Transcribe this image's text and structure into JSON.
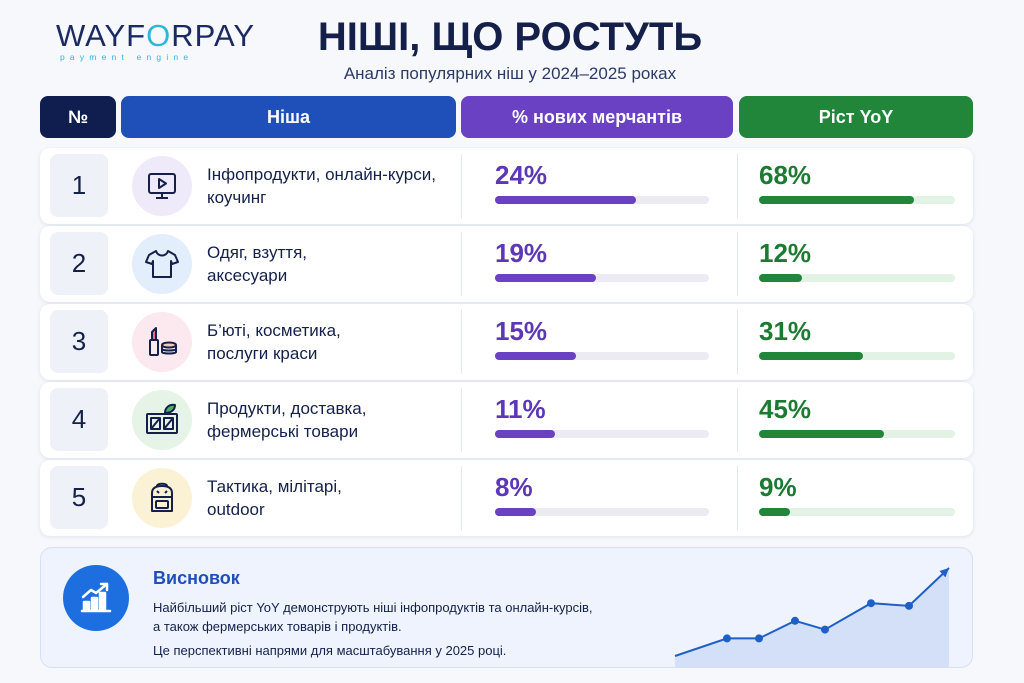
{
  "logo": {
    "word_a": "WAYF",
    "word_lock": "O",
    "word_b": "RPAY",
    "sub": "payment engine"
  },
  "header": {
    "title": "НІШІ, ЩО РОСТУТЬ",
    "subtitle": "Аналіз популярних ніш у 2024–2025 роках"
  },
  "table": {
    "columns": {
      "num": "№",
      "niche": "Ніша",
      "merchants": "% нових мерчантів",
      "yoy": "Ріст YoY"
    },
    "rows": [
      {
        "num": "1",
        "line1": "Інфопродукти, онлайн-курси,",
        "line2": "коучинг",
        "icon": "video-course-icon",
        "merchants": "24%",
        "merchants_value": 0.66,
        "yoy": "68%",
        "yoy_value": 0.79,
        "icon_bg": "#efeafa"
      },
      {
        "num": "2",
        "line1": "Одяг, взуття,",
        "line2": "аксесуари",
        "icon": "tshirt-icon",
        "merchants": "19%",
        "merchants_value": 0.47,
        "yoy": "12%",
        "yoy_value": 0.22,
        "icon_bg": "#e3eefc"
      },
      {
        "num": "3",
        "line1": "Б’юті, косметика,",
        "line2": "послуги краси",
        "icon": "cosmetics-icon",
        "merchants": "15%",
        "merchants_value": 0.38,
        "yoy": "31%",
        "yoy_value": 0.53,
        "icon_bg": "#fce8ef"
      },
      {
        "num": "4",
        "line1": "Продукти, доставка,",
        "line2": "фермерські товари",
        "icon": "grocery-box-icon",
        "merchants": "11%",
        "merchants_value": 0.28,
        "yoy": "45%",
        "yoy_value": 0.64,
        "icon_bg": "#e6f4e8"
      },
      {
        "num": "5",
        "line1": "Тактика, мілітарі,",
        "line2": "outdoor",
        "icon": "backpack-icon",
        "merchants": "8%",
        "merchants_value": 0.19,
        "yoy": "9%",
        "yoy_value": 0.16,
        "icon_bg": "#fbf2d6"
      }
    ]
  },
  "conclusion": {
    "title": "Висновок",
    "line1": "Найбільший ріст YoY демонструють ніші інфопродуктів та онлайн-курсів,",
    "line2": "а також фермерських товарів і продуктів.",
    "line3": "Це перспективні напрями для масштабування у 2025 році.",
    "icon": "growth-chart-icon",
    "trend_values": [
      0,
      2,
      2,
      4,
      3,
      6,
      5.7,
      10
    ]
  },
  "colors": {
    "navy": "#0f1d4f",
    "blue": "#1f4fb8",
    "purple": "#6a41c2",
    "green": "#21863a",
    "accent": "#1d6fe0"
  }
}
